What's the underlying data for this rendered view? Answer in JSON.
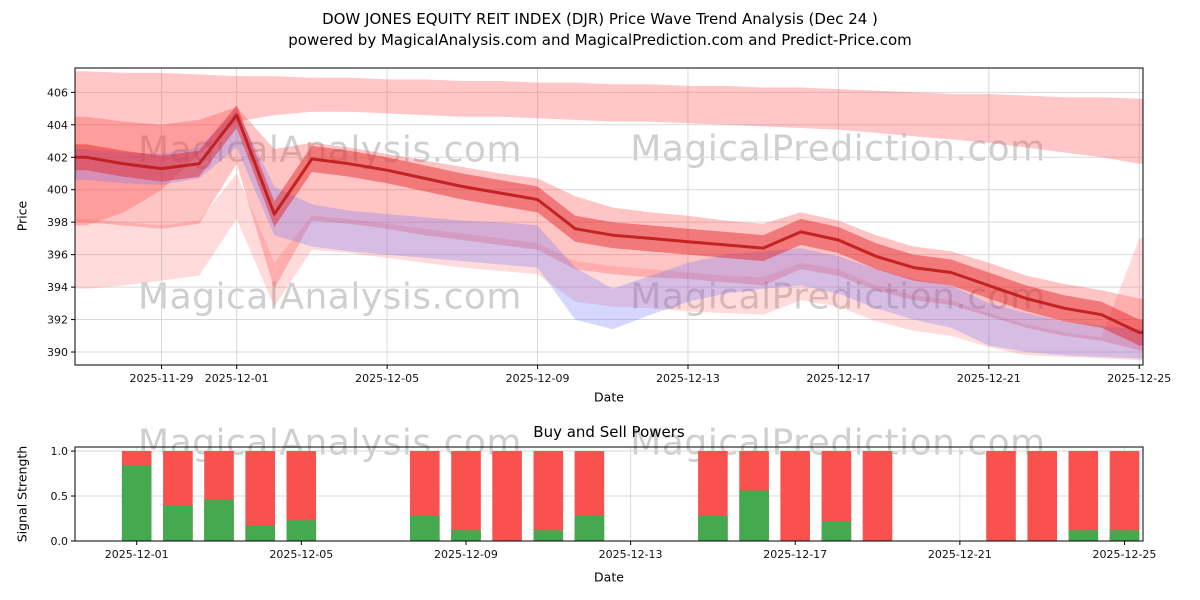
{
  "header": {
    "title": "DOW JONES EQUITY REIT INDEX (DJR) Price Wave Trend Analysis (Dec 24 )",
    "subtitle": "powered by MagicalAnalysis.com and MagicalPrediction.com and Predict-Price.com"
  },
  "watermarks": {
    "analysis": "MagicalAnalysis.com",
    "prediction": "MagicalPrediction.com"
  },
  "colors": {
    "grid": "#d9d9d9",
    "spine": "#000000",
    "sell_red": "#f8514e",
    "buy_green": "#44a94f",
    "trend_line": "rgba(190,25,25,0.9)"
  },
  "chart_data": [
    {
      "type": "area",
      "title": "Price Wave Trend Analysis",
      "xlabel": "Date",
      "ylabel": "Price",
      "ylim": [
        389.2,
        407.5
      ],
      "yticks": [
        390,
        392,
        394,
        396,
        398,
        400,
        402,
        404,
        406
      ],
      "xticks": [
        "2025-11-29",
        "2025-12-01",
        "2025-12-05",
        "2025-12-09",
        "2025-12-13",
        "2025-12-17",
        "2025-12-21",
        "2025-12-25"
      ],
      "grid": true,
      "x_dates": [
        "2025-11-27",
        "2025-11-28",
        "2025-11-29",
        "2025-11-30",
        "2025-12-01",
        "2025-12-02",
        "2025-12-03",
        "2025-12-04",
        "2025-12-05",
        "2025-12-06",
        "2025-12-07",
        "2025-12-08",
        "2025-12-09",
        "2025-12-10",
        "2025-12-11",
        "2025-12-12",
        "2025-12-13",
        "2025-12-14",
        "2025-12-15",
        "2025-12-16",
        "2025-12-17",
        "2025-12-18",
        "2025-12-19",
        "2025-12-20",
        "2025-12-21",
        "2025-12-22",
        "2025-12-23",
        "2025-12-24",
        "2025-12-25"
      ],
      "bands": [
        {
          "name": "upper-forecast-band",
          "color": "rgba(255,70,70,0.30)",
          "upper": [
            407.3,
            407.2,
            407.2,
            407.1,
            407.0,
            407.0,
            406.9,
            406.9,
            406.8,
            406.8,
            406.7,
            406.7,
            406.6,
            406.6,
            406.5,
            406.5,
            406.4,
            406.4,
            406.3,
            406.3,
            406.2,
            406.1,
            406.0,
            405.9,
            405.9,
            405.8,
            405.7,
            405.7,
            405.6
          ],
          "lower": [
            397.8,
            398.6,
            400.0,
            402.2,
            404.2,
            404.6,
            404.8,
            404.8,
            404.7,
            404.6,
            404.5,
            404.5,
            404.4,
            404.3,
            404.2,
            404.2,
            404.1,
            404.0,
            403.9,
            403.8,
            403.7,
            403.5,
            403.3,
            403.1,
            402.9,
            402.6,
            402.3,
            402.0,
            401.6
          ]
        },
        {
          "name": "mid-wave-band",
          "color": "rgba(255,60,60,0.30)",
          "upper": [
            404.5,
            404.2,
            404.0,
            404.3,
            405.1,
            402.5,
            402.9,
            402.6,
            402.2,
            401.8,
            401.4,
            401.0,
            400.7,
            399.6,
            398.9,
            398.6,
            398.4,
            398.1,
            397.9,
            398.6,
            398.1,
            397.2,
            396.5,
            396.2,
            395.5,
            394.7,
            394.2,
            393.8,
            393.3
          ],
          "lower": [
            398.0,
            397.8,
            397.6,
            397.9,
            401.6,
            393.9,
            398.1,
            397.9,
            397.6,
            397.2,
            396.9,
            396.6,
            396.3,
            395.1,
            394.8,
            394.6,
            394.5,
            394.3,
            394.1,
            395.1,
            394.7,
            393.8,
            393.2,
            392.9,
            392.2,
            391.5,
            391.0,
            390.7,
            390.1
          ]
        },
        {
          "name": "lower-forecast-band",
          "color": "rgba(255,90,90,0.22)",
          "upper": [
            398.2,
            398.0,
            397.8,
            398.1,
            401.0,
            395.5,
            398.4,
            398.2,
            397.9,
            397.6,
            397.3,
            397.0,
            396.7,
            395.6,
            395.3,
            395.1,
            394.9,
            394.7,
            394.6,
            395.5,
            395.1,
            394.1,
            393.5,
            393.2,
            392.4,
            391.7,
            391.2,
            390.9,
            397.0
          ],
          "lower": [
            393.9,
            394.1,
            394.4,
            394.7,
            398.2,
            392.8,
            396.3,
            396.1,
            395.8,
            395.5,
            395.2,
            395.0,
            394.8,
            393.1,
            392.8,
            392.7,
            392.5,
            392.4,
            392.3,
            393.2,
            392.8,
            391.9,
            391.3,
            391.0,
            390.3,
            389.8,
            389.7,
            389.6,
            389.5
          ]
        },
        {
          "name": "blue-wave-band",
          "color": "rgba(105,110,250,0.28)",
          "upper": [
            402.5,
            402.3,
            402.2,
            402.6,
            404.9,
            400.2,
            399.1,
            398.7,
            398.5,
            398.3,
            398.1,
            398.0,
            397.8,
            395.2,
            393.9,
            394.7,
            395.5,
            396.0,
            396.2,
            396.4,
            395.9,
            395.1,
            394.5,
            394.1,
            393.0,
            392.4,
            391.9,
            391.6,
            391.4
          ],
          "lower": [
            400.6,
            400.4,
            400.3,
            400.7,
            402.6,
            397.2,
            396.5,
            396.2,
            396.0,
            395.8,
            395.6,
            395.4,
            395.2,
            392.0,
            391.4,
            392.3,
            393.1,
            393.6,
            393.9,
            394.1,
            393.6,
            392.7,
            392.0,
            391.5,
            390.4,
            390.0,
            389.8,
            389.7,
            389.6
          ]
        },
        {
          "name": "core-wave-band",
          "color": "rgba(225,30,30,0.45)",
          "upper": [
            402.8,
            402.4,
            402.1,
            402.4,
            405.2,
            399.3,
            402.7,
            402.4,
            402.0,
            401.5,
            401.0,
            400.6,
            400.2,
            398.4,
            398.0,
            397.8,
            397.6,
            397.4,
            397.2,
            398.2,
            397.7,
            396.7,
            396.0,
            395.7,
            394.9,
            394.1,
            393.5,
            393.1,
            392.0
          ],
          "lower": [
            401.2,
            400.8,
            400.5,
            400.8,
            403.8,
            397.7,
            401.1,
            400.8,
            400.4,
            399.9,
            399.4,
            399.0,
            398.6,
            396.8,
            396.4,
            396.2,
            396.0,
            395.8,
            395.6,
            396.6,
            396.1,
            395.1,
            394.4,
            394.1,
            393.3,
            392.5,
            391.9,
            391.5,
            390.4
          ]
        }
      ],
      "line": {
        "name": "main-trend",
        "width": 3,
        "values": [
          402.0,
          401.6,
          401.3,
          401.6,
          404.6,
          398.5,
          401.9,
          401.6,
          401.2,
          400.7,
          400.2,
          399.8,
          399.4,
          397.6,
          397.2,
          397.0,
          396.8,
          396.6,
          396.4,
          397.4,
          396.9,
          395.9,
          395.2,
          394.9,
          394.1,
          393.3,
          392.7,
          392.3,
          391.2
        ]
      }
    },
    {
      "type": "bar",
      "title": "Buy and Sell Powers",
      "xlabel": "Date",
      "ylabel": "Signal Strength",
      "ylim": [
        0,
        1.045
      ],
      "yticks": [
        0.0,
        0.5,
        1.0
      ],
      "xticks": [
        "2025-12-01",
        "2025-12-05",
        "2025-12-09",
        "2025-12-13",
        "2025-12-17",
        "2025-12-21",
        "2025-12-25"
      ],
      "grid": true,
      "categories": [
        "2025-12-01",
        "2025-12-02",
        "2025-12-03",
        "2025-12-04",
        "2025-12-05",
        "2025-12-08",
        "2025-12-09",
        "2025-12-10",
        "2025-12-11",
        "2025-12-12",
        "2025-12-15",
        "2025-12-16",
        "2025-12-17",
        "2025-12-18",
        "2025-12-19",
        "2025-12-22",
        "2025-12-23",
        "2025-12-24",
        "2025-12-25"
      ],
      "series": [
        {
          "name": "sell-power",
          "values": [
            1.0,
            1.0,
            1.0,
            1.0,
            1.0,
            1.0,
            1.0,
            1.0,
            1.0,
            1.0,
            1.0,
            1.0,
            1.0,
            1.0,
            1.0,
            1.0,
            1.0,
            1.0,
            1.0
          ]
        },
        {
          "name": "buy-power",
          "values": [
            0.84,
            0.4,
            0.46,
            0.17,
            0.23,
            0.28,
            0.12,
            0.0,
            0.12,
            0.28,
            0.28,
            0.56,
            0.0,
            0.22,
            0.0,
            0.0,
            0.0,
            0.12,
            0.12
          ]
        }
      ]
    }
  ]
}
